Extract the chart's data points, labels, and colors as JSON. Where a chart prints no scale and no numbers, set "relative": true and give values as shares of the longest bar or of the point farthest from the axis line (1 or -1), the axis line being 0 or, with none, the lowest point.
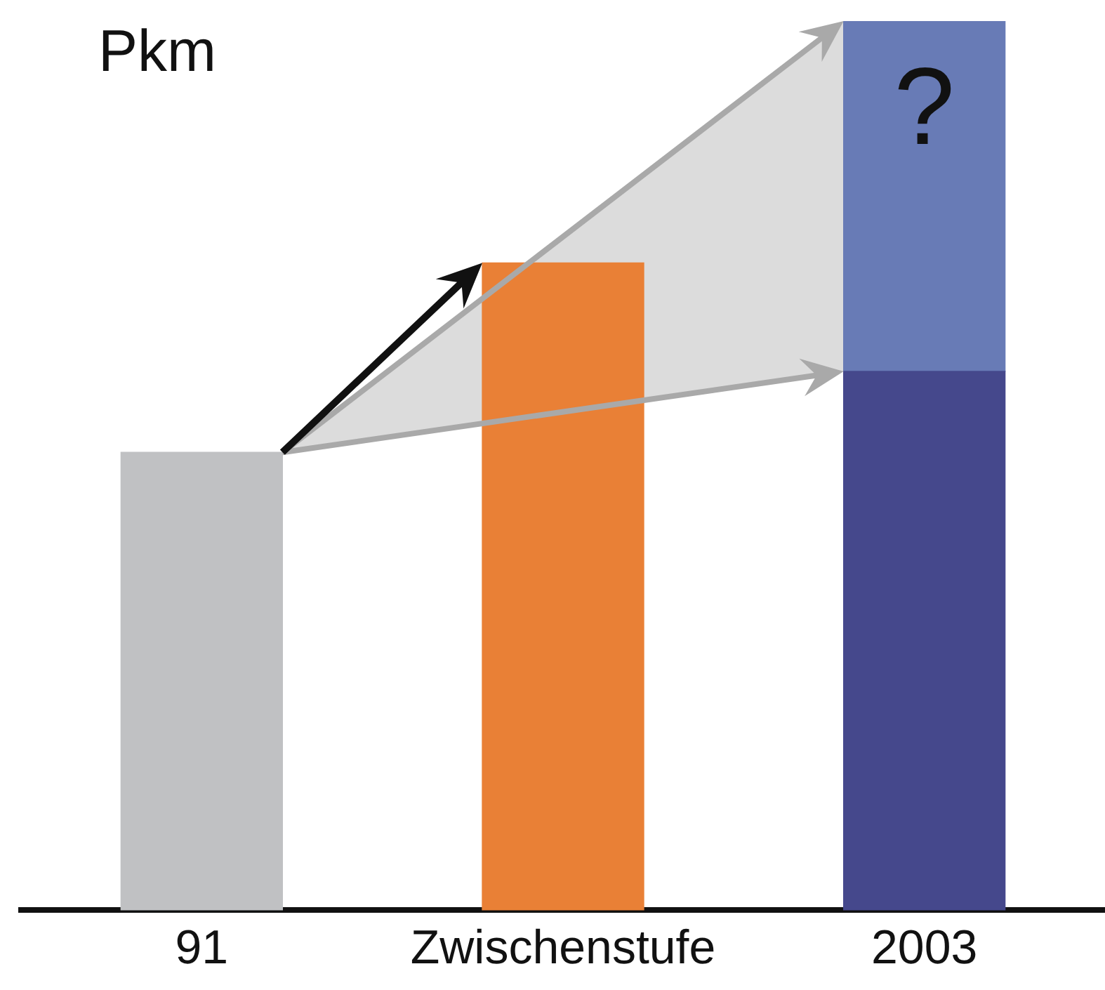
{
  "chart_data": {
    "type": "bar",
    "ylabel": "Pkm",
    "categories": [
      "91",
      "Zwischenstufe",
      "2003"
    ],
    "stacked": true,
    "relative": true,
    "grid": false,
    "legend": false,
    "series": [
      {
        "colors": [
          "#c0c1c3",
          "#e98036",
          "#45488c"
        ],
        "values": [
          0.515,
          0.728,
          0.606
        ]
      },
      {
        "color": "#687bb6",
        "values": [
          null,
          null,
          0.394
        ]
      }
    ],
    "annotations": [
      "?"
    ]
  }
}
